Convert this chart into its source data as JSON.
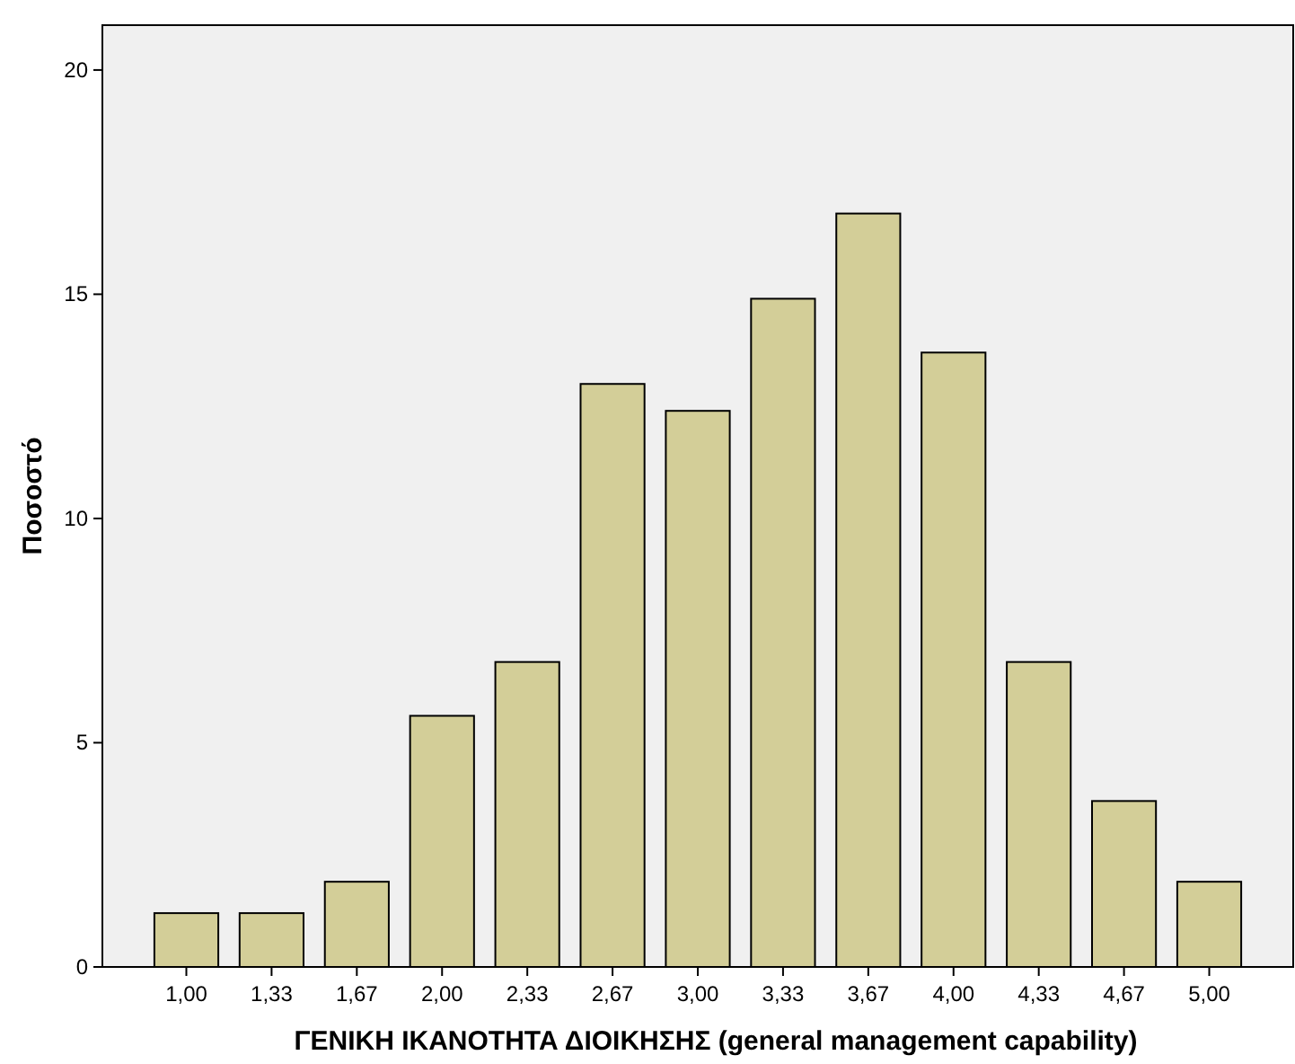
{
  "chart_data": {
    "type": "bar",
    "xlabel": "ΓΕΝΙΚΗ ΙΚΑΝΟΤΗΤΑ ΔΙΟΙΚΗΣΗΣ (general management capability)",
    "ylabel": "Ποσοστό",
    "categories": [
      "1,00",
      "1,33",
      "1,67",
      "2,00",
      "2,33",
      "2,67",
      "3,00",
      "3,33",
      "3,67",
      "4,00",
      "4,33",
      "4,67",
      "5,00"
    ],
    "values": [
      1.2,
      1.2,
      1.9,
      5.6,
      6.8,
      13.0,
      12.4,
      14.9,
      16.8,
      13.7,
      6.8,
      3.7,
      1.9
    ],
    "color": "#d3ce98",
    "ylim": [
      0,
      21
    ],
    "yticks": [
      0,
      5,
      10,
      15,
      20
    ],
    "grid": false
  }
}
